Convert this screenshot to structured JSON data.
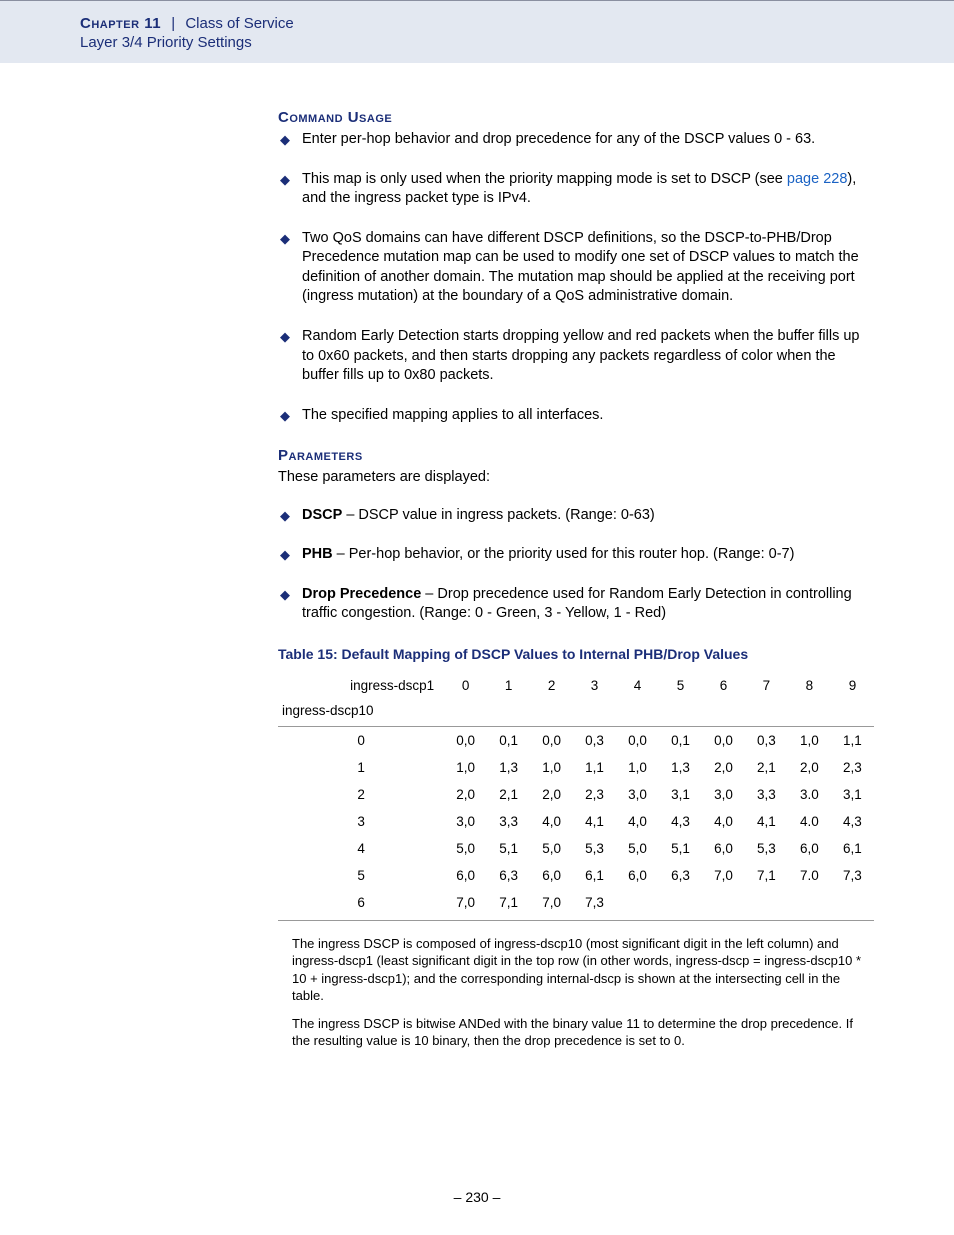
{
  "header": {
    "chapter_label": "Chapter 11",
    "pipe": "|",
    "title": "Class of Service",
    "subtitle": "Layer 3/4 Priority Settings"
  },
  "section1": {
    "heading": "Command Usage",
    "bullets": [
      "Enter per-hop behavior and drop precedence for any of the DSCP values 0 - 63.",
      "This map is only used when the priority mapping mode is set to DSCP (see ",
      "page 228",
      "), and the ingress packet type is IPv4.",
      "Two QoS domains can have different DSCP definitions, so the DSCP-to-PHB/Drop Precedence mutation map can be used to modify one set of DSCP values to match the definition of another domain. The mutation map should be applied at the receiving port (ingress mutation) at the boundary of a QoS administrative domain.",
      "Random Early Detection starts dropping yellow and red packets when the buffer fills up to 0x60 packets, and then starts dropping any packets regardless of color when the buffer fills up to 0x80 packets.",
      "The specified mapping applies to all interfaces."
    ]
  },
  "section2": {
    "heading": "Parameters",
    "intro": "These parameters are displayed:",
    "params": [
      {
        "name": "DSCP",
        "desc": " – DSCP value in ingress packets. (Range: 0-63)"
      },
      {
        "name": "PHB",
        "desc": " – Per-hop behavior, or the priority used for this router hop. (Range: 0-7)"
      },
      {
        "name": "Drop Precedence",
        "desc": " – Drop precedence used for Random Early Detection in controlling traffic congestion. (Range: 0 - Green, 3 - Yellow, 1 - Red)"
      }
    ]
  },
  "table": {
    "caption": "Table 15: Default Mapping of DSCP Values to Internal PHB/Drop Values",
    "corner_top": "ingress-dscp1",
    "corner_bot": "ingress-dscp10",
    "col_headers": [
      "0",
      "1",
      "2",
      "3",
      "4",
      "5",
      "6",
      "7",
      "8",
      "9"
    ],
    "row_headers": [
      "0",
      "1",
      "2",
      "3",
      "4",
      "5",
      "6"
    ],
    "rows": [
      [
        "0,0",
        "0,1",
        "0,0",
        "0,3",
        "0,0",
        "0,1",
        "0,0",
        "0,3",
        "1,0",
        "1,1"
      ],
      [
        "1,0",
        "1,3",
        "1,0",
        "1,1",
        "1,0",
        "1,3",
        "2,0",
        "2,1",
        "2,0",
        "2,3"
      ],
      [
        "2,0",
        "2,1",
        "2,0",
        "2,3",
        "3,0",
        "3,1",
        "3,0",
        "3,3",
        "3.0",
        "3,1"
      ],
      [
        "3,0",
        "3,3",
        "4,0",
        "4,1",
        "4,0",
        "4,3",
        "4,0",
        "4,1",
        "4.0",
        "4,3"
      ],
      [
        "5,0",
        "5,1",
        "5,0",
        "5,3",
        "5,0",
        "5,1",
        "6,0",
        "5,3",
        "6,0",
        "6,1"
      ],
      [
        "6,0",
        "6,3",
        "6,0",
        "6,1",
        "6,0",
        "6,3",
        "7,0",
        "7,1",
        "7.0",
        "7,3"
      ],
      [
        "7,0",
        "7,1",
        "7,0",
        "7,3",
        "",
        "",
        "",
        "",
        "",
        ""
      ]
    ]
  },
  "footnotes": [
    "The ingress DSCP is composed of ingress-dscp10 (most significant digit in the left column) and ingress-dscp1 (least significant digit in the top row (in other words, ingress-dscp = ingress-dscp10 * 10 + ingress-dscp1); and the corresponding internal-dscp is shown at the intersecting cell in the table.",
    "The ingress DSCP is bitwise ANDed with the binary value 11 to determine the drop precedence. If the resulting value is 10 binary, then the drop precedence is set to 0."
  ],
  "page_number": "– 230 –"
}
